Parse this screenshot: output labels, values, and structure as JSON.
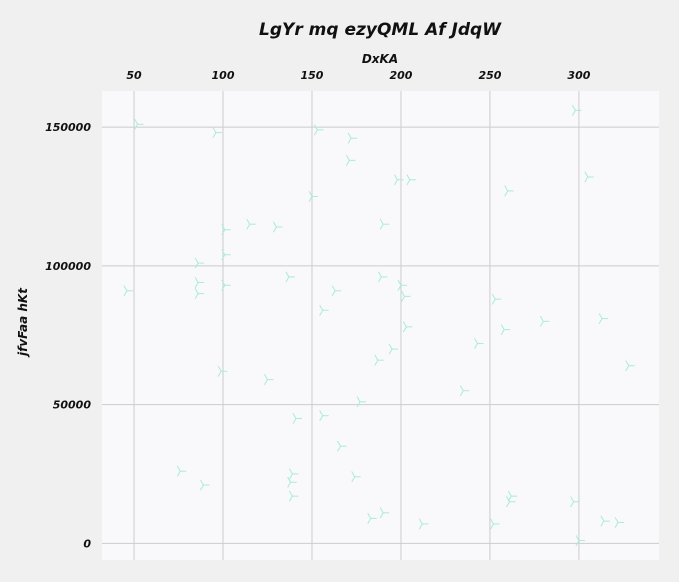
{
  "chart_data": {
    "type": "scatter",
    "title": "LgYr mq ezyQML Af JdqW",
    "xlabel": "DxKA",
    "ylabel": "jfvFaa  hKt",
    "xaxis_position": "top",
    "xlim": [
      32,
      345
    ],
    "ylim": [
      -6000,
      163000
    ],
    "xticks": [
      50,
      100,
      150,
      200,
      250,
      300
    ],
    "yticks": [
      0,
      50000,
      100000,
      150000
    ],
    "grid": true,
    "marker": "tri-right",
    "marker_color": "#a8ecd9",
    "plot_background": "#f9f8fb",
    "points": [
      [
        52,
        151000
      ],
      [
        96,
        148000
      ],
      [
        153,
        149000
      ],
      [
        172,
        146000
      ],
      [
        171,
        138000
      ],
      [
        298,
        156000
      ],
      [
        198,
        131000
      ],
      [
        205,
        131000
      ],
      [
        305,
        132000
      ],
      [
        260,
        127000
      ],
      [
        150,
        125000
      ],
      [
        101,
        113000
      ],
      [
        115,
        115000
      ],
      [
        130,
        114000
      ],
      [
        190,
        115000
      ],
      [
        101,
        104000
      ],
      [
        86,
        101000
      ],
      [
        46,
        91000
      ],
      [
        86,
        94000
      ],
      [
        86,
        90000
      ],
      [
        101,
        93000
      ],
      [
        137,
        96000
      ],
      [
        163,
        91000
      ],
      [
        189,
        96000
      ],
      [
        200,
        93000
      ],
      [
        202,
        89000
      ],
      [
        253,
        88000
      ],
      [
        156,
        84000
      ],
      [
        280,
        80000
      ],
      [
        313,
        81000
      ],
      [
        203,
        78000
      ],
      [
        258,
        77000
      ],
      [
        243,
        72000
      ],
      [
        195,
        70000
      ],
      [
        187,
        66000
      ],
      [
        328,
        64000
      ],
      [
        99,
        62000
      ],
      [
        125,
        59000
      ],
      [
        235,
        55000
      ],
      [
        177,
        51000
      ],
      [
        156,
        46000
      ],
      [
        141,
        45000
      ],
      [
        166,
        35000
      ],
      [
        76,
        26000
      ],
      [
        139,
        25000
      ],
      [
        138,
        22000
      ],
      [
        174,
        24000
      ],
      [
        89,
        21000
      ],
      [
        139,
        17000
      ],
      [
        262,
        17000
      ],
      [
        261,
        15000
      ],
      [
        297,
        15000
      ],
      [
        190,
        11000
      ],
      [
        183,
        9000
      ],
      [
        314,
        8000
      ],
      [
        322,
        7500
      ],
      [
        212,
        7000
      ],
      [
        252,
        7000
      ],
      [
        300,
        1000
      ]
    ]
  }
}
